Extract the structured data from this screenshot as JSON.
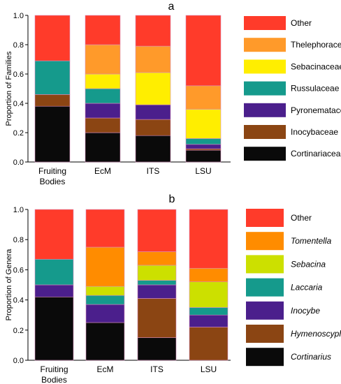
{
  "chart_data": [
    {
      "type": "bar",
      "panel_label": "a",
      "ylabel": "Proportion of Families",
      "ylim": [
        0,
        1.0
      ],
      "yticks": [
        "0.0",
        "0.2",
        "0.4",
        "0.6",
        "0.8",
        "1.0"
      ],
      "categories": [
        "Fruiting Bodies",
        "EcM",
        "ITS",
        "LSU"
      ],
      "legend_italic": false,
      "series": [
        {
          "name": "Cortinariaceae",
          "color": "#0a0a0a",
          "values": [
            0.38,
            0.2,
            0.18,
            0.08
          ]
        },
        {
          "name": "Inocybaceae",
          "color": "#8b4513",
          "values": [
            0.08,
            0.1,
            0.11,
            0.01
          ]
        },
        {
          "name": "Pyronemataceae",
          "color": "#4b1f8c",
          "values": [
            0.0,
            0.1,
            0.1,
            0.03
          ]
        },
        {
          "name": "Russulaceae",
          "color": "#159a8c",
          "values": [
            0.23,
            0.1,
            0.0,
            0.04
          ]
        },
        {
          "name": "Sebacinaceae",
          "color": "#ffee00",
          "values": [
            0.0,
            0.1,
            0.22,
            0.2
          ]
        },
        {
          "name": "Thelephoraceae",
          "color": "#ff9a2a",
          "values": [
            0.0,
            0.2,
            0.18,
            0.16
          ]
        },
        {
          "name": "Other",
          "color": "#ff3b2a",
          "values": [
            0.31,
            0.2,
            0.21,
            0.48
          ]
        }
      ]
    },
    {
      "type": "bar",
      "panel_label": "b",
      "ylabel": "Proportion of Genera",
      "ylim": [
        0,
        1.0
      ],
      "yticks": [
        "0.0",
        "0.2",
        "0.4",
        "0.6",
        "0.8",
        "1.0"
      ],
      "categories": [
        "Fruiting Bodies",
        "EcM",
        "ITS",
        "LSU"
      ],
      "legend_italic": true,
      "series": [
        {
          "name": "Cortinarius",
          "color": "#0a0a0a",
          "values": [
            0.42,
            0.25,
            0.15,
            0.0
          ]
        },
        {
          "name": "Hymenoscyphus",
          "color": "#8b4513",
          "values": [
            0.0,
            0.0,
            0.26,
            0.22
          ]
        },
        {
          "name": "Inocybe",
          "color": "#4b1f8c",
          "values": [
            0.08,
            0.12,
            0.09,
            0.08
          ]
        },
        {
          "name": "Laccaria",
          "color": "#159a8c",
          "values": [
            0.17,
            0.06,
            0.03,
            0.05
          ]
        },
        {
          "name": "Sebacina",
          "color": "#cce000",
          "values": [
            0.0,
            0.06,
            0.1,
            0.17
          ]
        },
        {
          "name": "Tomentella",
          "color": "#ff8c00",
          "values": [
            0.0,
            0.26,
            0.09,
            0.09
          ]
        },
        {
          "name": "Other",
          "color": "#ff3b2a",
          "values": [
            0.33,
            0.25,
            0.28,
            0.39
          ]
        }
      ]
    }
  ]
}
